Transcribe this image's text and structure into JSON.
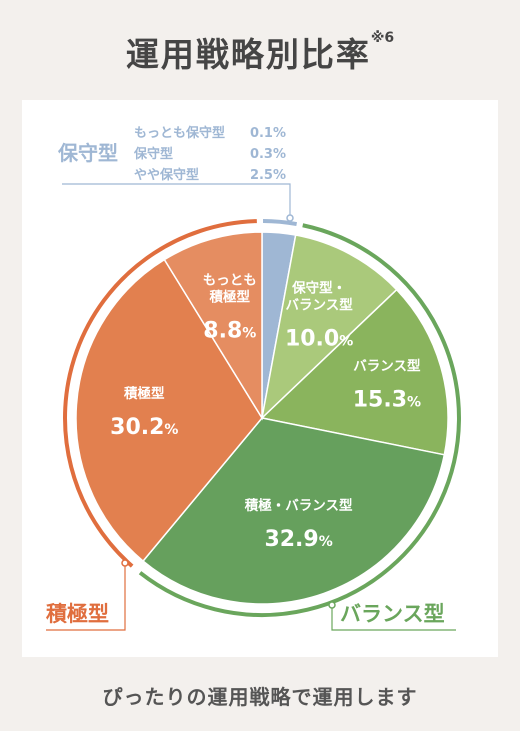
{
  "title": "運用戦略別比率",
  "title_note": "※6",
  "footer": "ぴったりの運用戦略で運用します",
  "colors": {
    "conservative": "#9fb7d4",
    "conservative_balance": "#aac97b",
    "balance": "#8ab45d",
    "active_balance": "#66a05d",
    "active": "#e2804f",
    "active_light": "#e58d61",
    "ring_active": "#e06e3e",
    "ring_balance": "#6aa65c"
  },
  "groups": {
    "conservative": "保守型",
    "active": "積極型",
    "balance": "バランス型"
  },
  "conservative_breakdown": [
    {
      "label": "もっとも保守型",
      "value": "0.1%"
    },
    {
      "label": "保守型",
      "value": "0.3%"
    },
    {
      "label": "やや保守型",
      "value": "2.5%"
    }
  ],
  "chart_data": {
    "type": "pie",
    "title": "運用戦略別比率",
    "unit": "%",
    "slices": [
      {
        "label": "保守型",
        "value": 2.9,
        "group": "保守型"
      },
      {
        "label": "保守型・バランス型",
        "value": 10.0,
        "group": "バランス型"
      },
      {
        "label": "バランス型",
        "value": 15.3,
        "group": "バランス型"
      },
      {
        "label": "積極・バランス型",
        "value": 32.9,
        "group": "バランス型"
      },
      {
        "label": "積極型",
        "value": 30.2,
        "group": "積極型"
      },
      {
        "label": "もっとも積極型",
        "value": 8.8,
        "group": "積極型"
      }
    ]
  },
  "slice_labels": [
    {
      "lines": [],
      "value": ""
    },
    {
      "lines": [
        "保守型・",
        "バランス型"
      ],
      "value": "10.0",
      "pct": "%"
    },
    {
      "lines": [
        "バランス型"
      ],
      "value": "15.3",
      "pct": "%"
    },
    {
      "lines": [
        "積極・バランス型"
      ],
      "value": "32.9",
      "pct": "%"
    },
    {
      "lines": [
        "積極型"
      ],
      "value": "30.2",
      "pct": "%"
    },
    {
      "lines": [
        "もっとも",
        "積極型"
      ],
      "value": "8.8",
      "pct": "%"
    }
  ]
}
